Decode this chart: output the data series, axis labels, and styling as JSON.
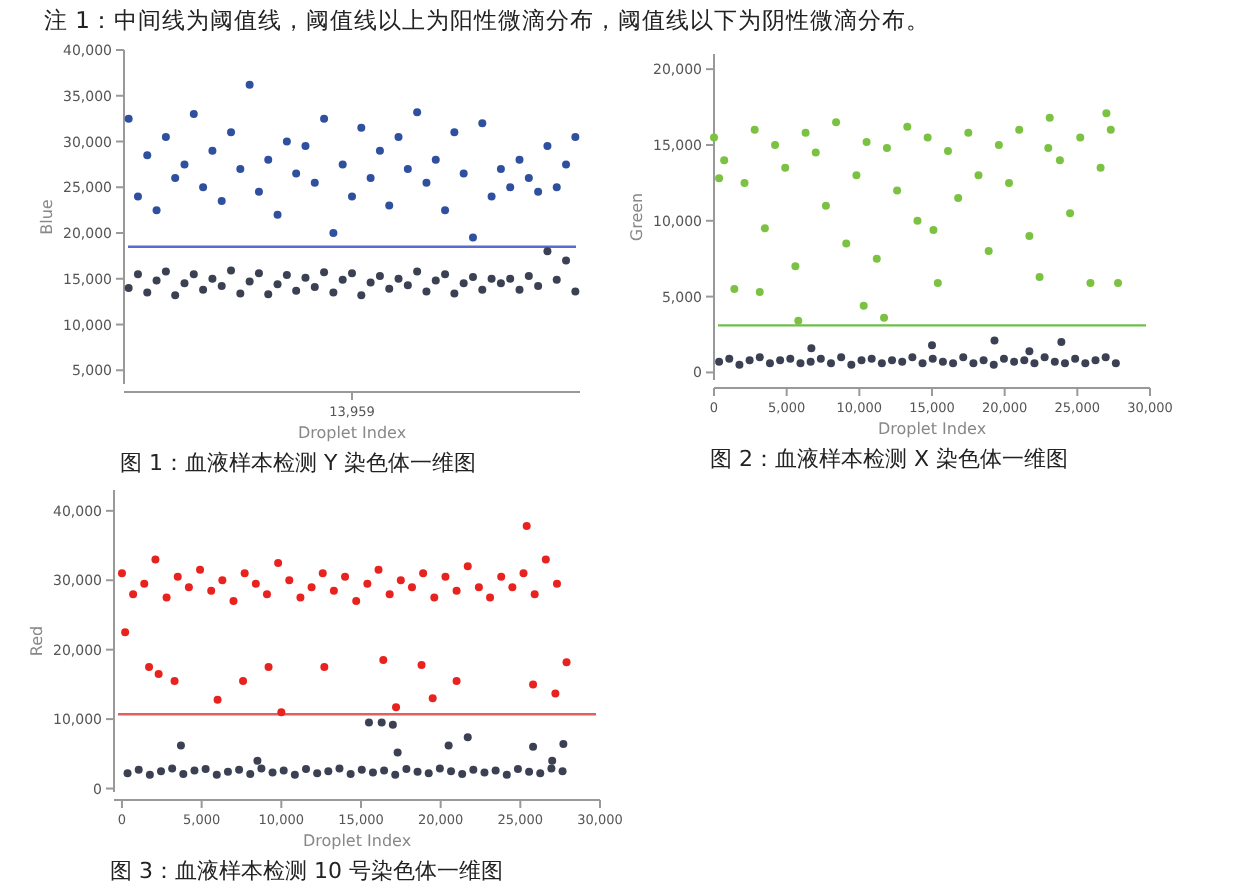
{
  "chart_data": [
    {
      "type": "scatter",
      "title": "图 1：血液样本检测 Y 染色体一维图",
      "xlabel": "Droplet Index",
      "ylabel": "Blue",
      "marker": "circle",
      "annotations": [
        "注 1：中间线为阈值线，阈值线以上为阳性微滴分布，阈值线以下为阴性微滴分布。",
        "13,959"
      ],
      "categories": [
        null,
        null,
        null,
        null,
        null,
        null,
        null,
        null,
        null,
        null,
        null,
        null,
        null,
        null,
        null,
        null,
        null,
        null,
        null,
        null,
        null,
        null,
        null,
        null,
        null,
        null,
        null,
        null,
        null,
        null,
        null,
        null,
        null,
        null,
        null,
        null,
        null,
        null,
        null,
        null,
        null,
        null,
        null,
        null,
        null,
        null,
        null,
        null,
        null
      ],
      "ylim": [
        3500,
        40000
      ],
      "yticks": [
        {
          "value": 5000,
          "label": "5,000"
        },
        {
          "value": 10000,
          "label": "10,000"
        },
        {
          "value": 15000,
          "label": "15,000"
        },
        {
          "value": 20000,
          "label": "20,000"
        },
        {
          "value": 25000,
          "label": "25,000"
        },
        {
          "value": 30000,
          "label": "30,000"
        },
        {
          "value": 35000,
          "label": "35,000"
        },
        {
          "value": 40000,
          "label": "40,000"
        }
      ],
      "ref_lines": [
        {
          "axis": "y",
          "value": 18500,
          "color": "#5b6ad0"
        }
      ],
      "series": [
        {
          "color": "#2f4f9f",
          "values": [
            32500,
            24000,
            28500,
            22500,
            30500,
            26000,
            27500,
            33000,
            25000,
            29000,
            23500,
            31000,
            27000,
            36200,
            24500,
            28000,
            22000,
            30000,
            26500,
            29500,
            25500,
            32500,
            20000,
            27500,
            24000,
            31500,
            26000,
            29000,
            23000,
            30500,
            27000,
            33200,
            25500,
            28000,
            22500,
            31000,
            26500,
            19500,
            32000,
            24000,
            27000,
            25000,
            28000,
            26000,
            24500,
            29500,
            25000,
            27500,
            30500
          ]
        },
        {
          "color": "#3b4152",
          "values": [
            14000,
            15500,
            13500,
            14800,
            15800,
            13200,
            14500,
            15500,
            13800,
            15000,
            14200,
            15900,
            13400,
            14700,
            15600,
            13300,
            14400,
            15400,
            13700,
            15100,
            14100,
            15700,
            13500,
            14900,
            15600,
            13200,
            14600,
            15300,
            13900,
            15000,
            14300,
            15800,
            13600,
            14800,
            15500,
            13400,
            14500,
            15200,
            13800,
            15000,
            14500,
            15000,
            13800,
            15300,
            14200,
            18000,
            14900,
            17000,
            13600
          ]
        }
      ]
    },
    {
      "type": "scatter",
      "title": "图 2：血液样本检测 X 染色体一维图",
      "xlabel": "Droplet Index",
      "ylabel": "Green",
      "marker": "circle",
      "xlim": [
        0,
        30000
      ],
      "xticks": [
        0,
        {
          "value": 5000,
          "label": "5,000"
        },
        {
          "value": 10000,
          "label": "10,000"
        },
        {
          "value": 15000,
          "label": "15,000"
        },
        {
          "value": 20000,
          "label": "20,000"
        },
        {
          "value": 25000,
          "label": "25,000"
        },
        {
          "value": 30000,
          "label": "30,000"
        }
      ],
      "ylim": [
        -500,
        21000
      ],
      "yticks": [
        0,
        {
          "value": 5000,
          "label": "5,000"
        },
        {
          "value": 10000,
          "label": "10,000"
        },
        {
          "value": 15000,
          "label": "15,000"
        },
        {
          "value": 20000,
          "label": "20,000"
        }
      ],
      "ref_lines": [
        {
          "axis": "y",
          "value": 3100,
          "color": "#6cc04a"
        }
      ],
      "series": [
        {
          "color": "#7cc242",
          "x": [
            0,
            700,
            1400,
            2100,
            2800,
            3500,
            4200,
            4900,
            5600,
            6300,
            7000,
            7700,
            8400,
            9100,
            9800,
            10500,
            11200,
            11900,
            12600,
            13300,
            14000,
            14700,
            15400,
            16100,
            16800,
            17500,
            18200,
            18900,
            19600,
            20300,
            21000,
            21700,
            22400,
            23100,
            23800,
            24500,
            25200,
            25900,
            26600,
            27300,
            350,
            3150,
            5800,
            10300,
            11700,
            15100,
            23000,
            27000,
            27800
          ],
          "values": [
            15500,
            14000,
            5500,
            12500,
            16000,
            9500,
            15000,
            13500,
            7000,
            15800,
            14500,
            11000,
            16500,
            8500,
            13000,
            15200,
            7500,
            14800,
            12000,
            16200,
            10000,
            15500,
            5900,
            14600,
            11500,
            15800,
            13000,
            8000,
            15000,
            12500,
            16000,
            9000,
            6300,
            16800,
            14000,
            10500,
            15500,
            5900,
            13500,
            16000,
            12800,
            5300,
            3400,
            4400,
            3600,
            9400,
            14800,
            17100,
            5900
          ]
        },
        {
          "color": "#3b4152",
          "x": [
            350,
            1050,
            1750,
            2450,
            3150,
            3850,
            4550,
            5250,
            5950,
            6650,
            7350,
            8050,
            8750,
            9450,
            10150,
            10850,
            11550,
            12250,
            12950,
            13650,
            14350,
            15050,
            15750,
            16450,
            17150,
            17850,
            18550,
            19250,
            19950,
            20650,
            21350,
            22050,
            22750,
            23450,
            24150,
            24850,
            25550,
            26250,
            26950,
            27650,
            6700,
            15000,
            19300,
            23900,
            21700
          ],
          "values": [
            700,
            900,
            500,
            800,
            1000,
            600,
            800,
            900,
            600,
            700,
            900,
            600,
            1000,
            500,
            800,
            900,
            600,
            800,
            700,
            1000,
            600,
            900,
            700,
            600,
            1000,
            600,
            800,
            500,
            900,
            700,
            800,
            600,
            1000,
            700,
            600,
            900,
            600,
            800,
            1000,
            600,
            1600,
            1800,
            2100,
            2000,
            1400
          ]
        }
      ]
    },
    {
      "type": "scatter",
      "title": "图 3：血液样本检测 10 号染色体一维图",
      "xlabel": "Droplet Index",
      "ylabel": "Red",
      "marker": "circle",
      "xlim": [
        -500,
        30000
      ],
      "xticks": [
        0,
        {
          "value": 5000,
          "label": "5,000"
        },
        {
          "value": 10000,
          "label": "10,000"
        },
        {
          "value": 15000,
          "label": "15,000"
        },
        {
          "value": 20000,
          "label": "20,000"
        },
        {
          "value": 25000,
          "label": "25,000"
        },
        {
          "value": 30000,
          "label": "30,000"
        }
      ],
      "ylim": [
        -500,
        43000
      ],
      "yticks": [
        0,
        {
          "value": 10000,
          "label": "10,000"
        },
        {
          "value": 20000,
          "label": "20,000"
        },
        {
          "value": 30000,
          "label": "30,000"
        },
        {
          "value": 40000,
          "label": "40,000"
        }
      ],
      "ref_lines": [
        {
          "axis": "y",
          "value": 10700,
          "color": "#e06060"
        }
      ],
      "series": [
        {
          "color": "#e8231f",
          "x": [
            0,
            700,
            1400,
            2100,
            2800,
            3500,
            4200,
            4900,
            5600,
            6300,
            7000,
            7700,
            8400,
            9100,
            9800,
            10500,
            11200,
            11900,
            12600,
            13300,
            14000,
            14700,
            15400,
            16100,
            16800,
            17500,
            18200,
            18900,
            19600,
            20300,
            21000,
            21700,
            22400,
            23100,
            23800,
            24500,
            25200,
            25900,
            26600,
            27300,
            200,
            1700,
            2300,
            3300,
            6000,
            7600,
            9200,
            10000,
            12700,
            16400,
            17200,
            18800,
            19500,
            21000,
            25400,
            25800,
            27200,
            27900
          ],
          "values": [
            31000,
            28000,
            29500,
            33000,
            27500,
            30500,
            29000,
            31500,
            28500,
            30000,
            27000,
            31000,
            29500,
            28000,
            32500,
            30000,
            27500,
            29000,
            31000,
            28500,
            30500,
            27000,
            29500,
            31500,
            28000,
            30000,
            29000,
            31000,
            27500,
            30500,
            28500,
            32000,
            29000,
            27500,
            30500,
            29000,
            31000,
            28000,
            33000,
            29500,
            22500,
            17500,
            16500,
            15500,
            12800,
            15500,
            17500,
            11000,
            17500,
            18500,
            11700,
            17800,
            13000,
            15500,
            37800,
            15000,
            13700,
            18200
          ]
        },
        {
          "color": "#3b4152",
          "x": [
            350,
            1050,
            1750,
            2450,
            3150,
            3850,
            4550,
            5250,
            5950,
            6650,
            7350,
            8050,
            8750,
            9450,
            10150,
            10850,
            11550,
            12250,
            12950,
            13650,
            14350,
            15050,
            15750,
            16450,
            17150,
            17850,
            18550,
            19250,
            19950,
            20650,
            21350,
            22050,
            22750,
            23450,
            24150,
            24850,
            25550,
            26250,
            26950,
            27650,
            3700,
            8500,
            15500,
            16300,
            17000,
            17300,
            20500,
            21700,
            25800,
            27000,
            27700
          ],
          "values": [
            2200,
            2700,
            2000,
            2500,
            2900,
            2100,
            2600,
            2800,
            2000,
            2400,
            2700,
            2100,
            2900,
            2300,
            2600,
            2000,
            2800,
            2200,
            2500,
            2900,
            2100,
            2700,
            2300,
            2600,
            2000,
            2800,
            2400,
            2200,
            2900,
            2500,
            2100,
            2700,
            2300,
            2600,
            2000,
            2800,
            2400,
            2200,
            2900,
            2500,
            6200,
            4000,
            9500,
            9500,
            9200,
            5200,
            6200,
            7400,
            6000,
            4000,
            6400
          ]
        }
      ]
    }
  ]
}
